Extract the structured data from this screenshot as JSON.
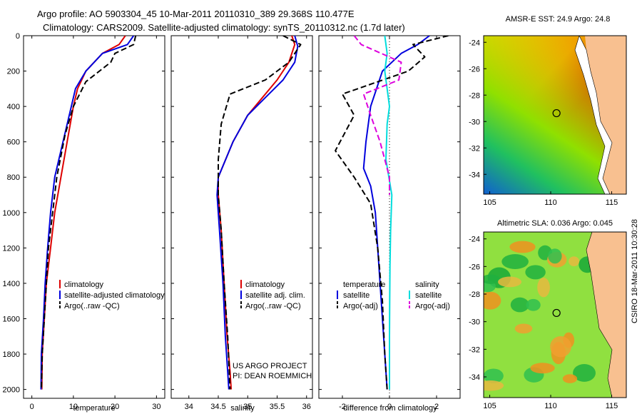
{
  "header": {
    "title_line1": "Argo profile: AO 5903304_45 10-Mar-2011 20110310_389 29.368S 110.477E",
    "title_line2": "Climatology: CARS2009. Satellite-adjusted climatology: synTS_20110312.nc (1.7d later)"
  },
  "side_label": "CSIRO 18-Mar-2011 10:30:28",
  "colors": {
    "climatology": "#dd0000",
    "satellite": "#0000dd",
    "argo": "#000000",
    "sal_sat": "#00dddd",
    "sal_argo": "#dd00dd"
  },
  "chart_data": [
    {
      "type": "line",
      "name": "temperature-profile",
      "xlabel": "temperature",
      "ylabel": "",
      "xlim": [
        -2,
        32
      ],
      "ylim": [
        2050,
        0
      ],
      "xticks": [
        "0",
        "10",
        "20",
        "30"
      ],
      "xtick_values": [
        0,
        10,
        20,
        30
      ],
      "yticks": [
        "0",
        "200",
        "400",
        "600",
        "800",
        "1000",
        "1200",
        "1400",
        "1600",
        "1800",
        "2000"
      ],
      "ytick_values": [
        0,
        200,
        400,
        600,
        800,
        1000,
        1200,
        1400,
        1600,
        1800,
        2000
      ],
      "legend": [
        "climatology",
        "satellite-adjusted climatology",
        "Argo(..raw -QC)"
      ],
      "series": [
        {
          "name": "climatology",
          "color": "#dd0000",
          "dash": "",
          "x": [
            22.5,
            21,
            17,
            13,
            11,
            10,
            8.5,
            7,
            5.5,
            4.5,
            3.5,
            3,
            2.5,
            2.4
          ],
          "y": [
            0,
            50,
            100,
            200,
            300,
            400,
            600,
            800,
            1000,
            1200,
            1400,
            1600,
            1800,
            2000
          ]
        },
        {
          "name": "satellite-adjusted climatology",
          "color": "#0000dd",
          "dash": "",
          "x": [
            24.5,
            23,
            17,
            13,
            10.5,
            9.5,
            7.5,
            5.5,
            4.5,
            3.8,
            3.2,
            2.8,
            2.3,
            2.2
          ],
          "y": [
            0,
            50,
            100,
            200,
            300,
            400,
            600,
            800,
            1000,
            1200,
            1400,
            1600,
            1800,
            2000
          ]
        },
        {
          "name": "Argo(..raw -QC)",
          "color": "#000000",
          "dash": "8,4",
          "x": [
            25,
            24.5,
            20,
            19,
            13,
            10,
            8,
            6,
            5,
            4,
            3.5,
            3,
            2.5,
            2.3
          ],
          "y": [
            0,
            50,
            100,
            150,
            260,
            400,
            560,
            800,
            1000,
            1200,
            1400,
            1600,
            1800,
            2000
          ]
        }
      ]
    },
    {
      "type": "line",
      "name": "salinity-profile",
      "xlabel": "salinity",
      "xlim": [
        33.7,
        36.1
      ],
      "ylim": [
        2050,
        0
      ],
      "xticks": [
        "34",
        "34.5",
        "35",
        "35.5",
        "36"
      ],
      "xtick_values": [
        34,
        34.5,
        35,
        35.5,
        36
      ],
      "legend": [
        "climatology",
        "satellite adj. clim.",
        "Argo(..raw -QC)"
      ],
      "annotations": [
        "US ARGO PROJECT",
        "PI: DEAN ROEMMICH"
      ],
      "series": [
        {
          "name": "climatology",
          "color": "#dd0000",
          "dash": "",
          "x": [
            35.75,
            35.8,
            35.7,
            35.5,
            35.25,
            35.0,
            34.75,
            34.5,
            34.5,
            34.55,
            34.6,
            34.65,
            34.7,
            34.72
          ],
          "y": [
            0,
            50,
            150,
            250,
            350,
            450,
            600,
            800,
            900,
            1100,
            1400,
            1700,
            1900,
            2000
          ]
        },
        {
          "name": "satellite adj. clim.",
          "color": "#0000dd",
          "dash": "",
          "x": [
            35.8,
            35.85,
            35.8,
            35.6,
            35.3,
            35.0,
            34.75,
            34.5,
            34.48,
            34.52,
            34.58,
            34.62,
            34.66,
            34.68
          ],
          "y": [
            0,
            60,
            150,
            250,
            350,
            450,
            600,
            800,
            900,
            1100,
            1400,
            1700,
            1900,
            2000
          ]
        },
        {
          "name": "Argo(..raw -QC)",
          "color": "#000000",
          "dash": "8,4",
          "x": [
            35.6,
            35.9,
            35.7,
            35.3,
            34.7,
            34.55,
            34.5,
            34.5,
            34.55,
            34.6,
            34.66,
            34.7
          ],
          "y": [
            0,
            50,
            150,
            250,
            330,
            500,
            700,
            900,
            1100,
            1400,
            1700,
            2000
          ]
        }
      ]
    },
    {
      "type": "line",
      "name": "difference-profile",
      "xlabel": "difference from climatology",
      "xlim": [
        -3,
        3
      ],
      "ylim": [
        2050,
        0
      ],
      "xticks": [
        "-2",
        "0",
        "2"
      ],
      "xtick_values": [
        -2,
        0,
        2
      ],
      "legend_groups": [
        {
          "title": "temperature",
          "items": [
            "satellite",
            "Argo(-adj)"
          ]
        },
        {
          "title": "salinity",
          "items": [
            "satellite",
            "Argo(-adj)"
          ]
        }
      ],
      "series": [
        {
          "name": "temperature satellite",
          "color": "#0000dd",
          "dash": "",
          "x": [
            1.7,
            1.2,
            0.5,
            -0.3,
            -0.8,
            -1.0,
            -1.1,
            -0.8,
            -0.6,
            -0.5,
            -0.4,
            -0.3,
            -0.2,
            -0.1
          ],
          "y": [
            0,
            50,
            100,
            200,
            400,
            600,
            750,
            850,
            1000,
            1200,
            1400,
            1600,
            1800,
            2000
          ]
        },
        {
          "name": "temperature Argo(-adj)",
          "color": "#000000",
          "dash": "8,4",
          "x": [
            2.5,
            1.0,
            1.5,
            0.8,
            -2.0,
            -1.5,
            -2.3,
            -1.5,
            -0.8,
            -0.5,
            -0.3,
            -0.2,
            -0.1
          ],
          "y": [
            0,
            50,
            120,
            200,
            330,
            450,
            650,
            800,
            950,
            1200,
            1500,
            1800,
            2000
          ]
        },
        {
          "name": "salinity satellite",
          "color": "#00dddd",
          "dash": "",
          "x": [
            -0.2,
            -0.1,
            -0.2,
            -0.1,
            0.0,
            -0.1,
            -0.15,
            0.1,
            0.05,
            0.02,
            0.01,
            0.0,
            0.0,
            0.0
          ],
          "y": [
            0,
            100,
            200,
            300,
            400,
            500,
            700,
            900,
            1100,
            1300,
            1500,
            1700,
            1900,
            2000
          ]
        },
        {
          "name": "salinity Argo(-adj)",
          "color": "#dd00dd",
          "dash": "8,4",
          "x": [
            -1.5,
            -1.2,
            0.5,
            0.4,
            -1.1,
            -0.8,
            -0.4,
            0.0,
            0.0
          ],
          "y": [
            0,
            50,
            150,
            250,
            330,
            450,
            600,
            800,
            900
          ]
        }
      ]
    },
    {
      "type": "heatmap",
      "name": "sst-map",
      "title": "AMSR-E SST: 24.9 Argo: 24.8",
      "xticks": [
        "105",
        "110",
        "115"
      ],
      "xtick_values": [
        105,
        110,
        115
      ],
      "yticks": [
        "-24",
        "-26",
        "-28",
        "-30",
        "-32",
        "-34"
      ],
      "ytick_values": [
        -24,
        -26,
        -28,
        -30,
        -32,
        -34
      ],
      "xlim": [
        104.5,
        116.2
      ],
      "ylim": [
        -35.5,
        -23.5
      ],
      "marker": {
        "lon": 110.477,
        "lat": -29.368
      }
    },
    {
      "type": "heatmap",
      "name": "sla-map",
      "title": "Altimetric SLA: 0.036 Argo: 0.045",
      "xticks": [
        "105",
        "110",
        "115"
      ],
      "xtick_values": [
        105,
        110,
        115
      ],
      "yticks": [
        "-24",
        "-26",
        "-28",
        "-30",
        "-32",
        "-34"
      ],
      "ytick_values": [
        -24,
        -26,
        -28,
        -30,
        -32,
        -34
      ],
      "xlim": [
        104.5,
        116.2
      ],
      "ylim": [
        -35.5,
        -23.5
      ],
      "marker": {
        "lon": 110.477,
        "lat": -29.368
      }
    }
  ]
}
